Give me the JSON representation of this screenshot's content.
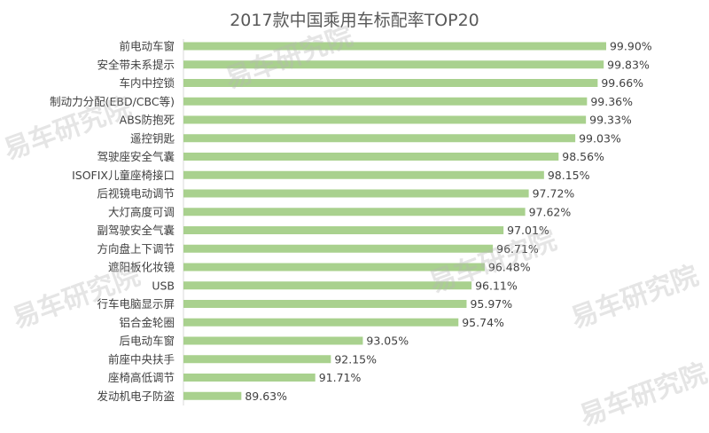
{
  "chart_data": {
    "type": "bar",
    "orientation": "horizontal",
    "title": "2017款中国乘用车标配率TOP20",
    "xlabel": "",
    "ylabel": "",
    "xlim": [
      88,
      100
    ],
    "grid": true,
    "legend": "none",
    "bar_color": "#a9d18e",
    "categories": [
      "前电动车窗",
      "安全带未系提示",
      "车内中控锁",
      "制动力分配(EBD/CBC等)",
      "ABS防抱死",
      "遥控钥匙",
      "驾驶座安全气囊",
      "ISOFIX儿童座椅接口",
      "后视镜电动调节",
      "大灯高度可调",
      "副驾驶安全气囊",
      "方向盘上下调节",
      "遮阳板化妆镜",
      "USB",
      "行车电脑显示屏",
      "铝合金轮圈",
      "后电动车窗",
      "前座中央扶手",
      "座椅高低调节",
      "发动机电子防盗"
    ],
    "values": [
      99.9,
      99.83,
      99.66,
      99.36,
      99.33,
      99.03,
      98.56,
      98.15,
      97.72,
      97.62,
      97.01,
      96.71,
      96.48,
      96.11,
      95.97,
      95.74,
      93.05,
      92.15,
      91.71,
      89.63
    ],
    "data_labels": [
      "99.90%",
      "99.83%",
      "99.66%",
      "99.36%",
      "99.33%",
      "99.03%",
      "98.56%",
      "98.15%",
      "97.72%",
      "97.62%",
      "97.01%",
      "96.71%",
      "96.48%",
      "96.11%",
      "95.97%",
      "95.74%",
      "93.05%",
      "92.15%",
      "91.71%",
      "89.63%"
    ]
  },
  "watermark": "易车研究院",
  "colors": {
    "bar": "#a9d18e",
    "text": "#404040",
    "title": "#595959",
    "grid": "#e6e6e6"
  }
}
